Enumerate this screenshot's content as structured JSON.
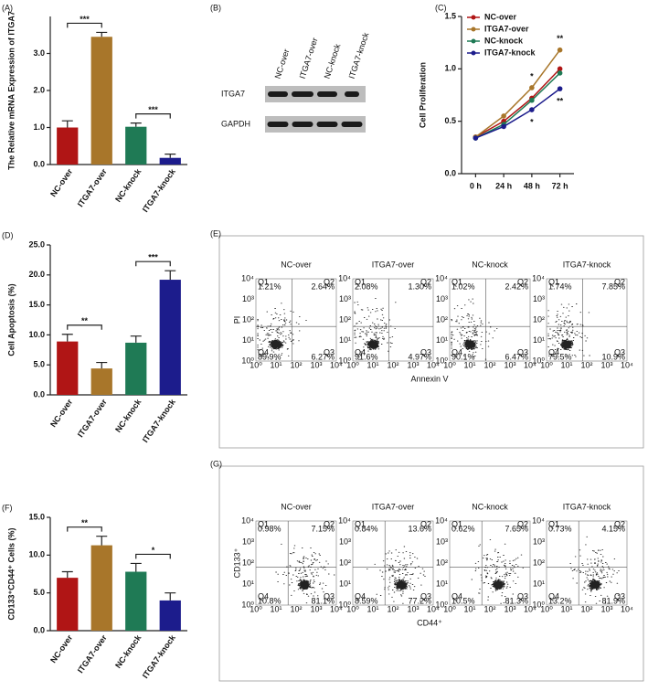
{
  "chart_data": [
    {
      "type": "bar",
      "panel": "(A)",
      "y_label": "The Relative mRNA Expression of ITGA7",
      "categories": [
        "NC-over",
        "ITGA7-over",
        "NC-knock",
        "ITGA7-knock"
      ],
      "values": [
        1.0,
        3.45,
        1.02,
        0.18
      ],
      "errors": [
        0.18,
        0.12,
        0.1,
        0.1
      ],
      "colors": [
        "#b01515",
        "#a8762a",
        "#1f7a55",
        "#1c1c8c"
      ],
      "ylim": [
        0,
        4
      ],
      "yticks": [
        {
          "value": 0,
          "label": "0.0"
        },
        {
          "value": 1,
          "label": "1.0"
        },
        {
          "value": 2,
          "label": "2.0"
        },
        {
          "value": 3,
          "label": "3.0"
        }
      ],
      "brackets": [
        {
          "pair": [
            "NC-over",
            "ITGA7-over"
          ],
          "label": "***"
        },
        {
          "pair": [
            "NC-knock",
            "ITGA7-knock"
          ],
          "label": "***"
        }
      ]
    },
    {
      "type": "line",
      "panel": "(C)",
      "y_label": "Cell Proliferation",
      "categories": [
        "0 h",
        "24 h",
        "48 h",
        "72 h"
      ],
      "series": [
        {
          "name": "NC-over",
          "color": "#b01515",
          "values": [
            0.35,
            0.5,
            0.72,
            1.0
          ]
        },
        {
          "name": "ITGA7-over",
          "color": "#a8762a",
          "values": [
            0.35,
            0.55,
            0.82,
            1.18
          ]
        },
        {
          "name": "NC-knock",
          "color": "#1f7a55",
          "values": [
            0.34,
            0.47,
            0.7,
            0.96
          ]
        },
        {
          "name": "ITGA7-knock",
          "color": "#1c1c8c",
          "values": [
            0.34,
            0.45,
            0.61,
            0.81
          ]
        }
      ],
      "ylim": [
        0,
        1.5
      ],
      "yticks": [
        {
          "value": 0,
          "label": "0.0"
        },
        0.5,
        {
          "value": 1,
          "label": "1.0"
        },
        1.5
      ],
      "legend": "top-left",
      "annotations": [
        {
          "x": "48 h",
          "series": "ITGA7-over",
          "label": "*"
        },
        {
          "x": "48 h",
          "series": "ITGA7-knock",
          "label": "*"
        },
        {
          "x": "72 h",
          "series": "ITGA7-over",
          "label": "**"
        },
        {
          "x": "72 h",
          "series": "ITGA7-knock",
          "label": "**"
        }
      ]
    },
    {
      "type": "bar",
      "panel": "(D)",
      "y_label": "Cell Apoptosis (%)",
      "categories": [
        "NC-over",
        "ITGA7-over",
        "NC-knock",
        "ITGA7-knock"
      ],
      "values": [
        8.9,
        4.4,
        8.7,
        19.2
      ],
      "errors": [
        1.2,
        1.0,
        1.1,
        1.5
      ],
      "colors": [
        "#b01515",
        "#a8762a",
        "#1f7a55",
        "#1c1c8c"
      ],
      "ylim": [
        0,
        25
      ],
      "yticks": [
        {
          "value": 0,
          "label": "0.0"
        },
        {
          "value": 5,
          "label": "5.0"
        },
        {
          "value": 10,
          "label": "10.0"
        },
        {
          "value": 15,
          "label": "15.0"
        },
        {
          "value": 20,
          "label": "20.0"
        },
        {
          "value": 25,
          "label": "25.0"
        }
      ],
      "brackets": [
        {
          "pair": [
            "NC-over",
            "ITGA7-over"
          ],
          "label": "**"
        },
        {
          "pair": [
            "NC-knock",
            "ITGA7-knock"
          ],
          "label": "***"
        }
      ]
    },
    {
      "type": "bar",
      "panel": "(F)",
      "y_label": "CD133⁺CD44⁺ Cells (%)",
      "categories": [
        "NC-over",
        "ITGA7-over",
        "NC-knock",
        "ITGA7-knock"
      ],
      "values": [
        7.0,
        11.3,
        7.8,
        4.0
      ],
      "errors": [
        0.8,
        1.2,
        1.1,
        1.0
      ],
      "colors": [
        "#b01515",
        "#a8762a",
        "#1f7a55",
        "#1c1c8c"
      ],
      "ylim": [
        0,
        15
      ],
      "yticks": [
        {
          "value": 0,
          "label": "0.0"
        },
        {
          "value": 5,
          "label": "5.0"
        },
        {
          "value": 10,
          "label": "10.0"
        },
        {
          "value": 15,
          "label": "15.0"
        }
      ],
      "brackets": [
        {
          "pair": [
            "NC-over",
            "ITGA7-over"
          ],
          "label": "**"
        },
        {
          "pair": [
            "NC-knock",
            "ITGA7-knock"
          ],
          "label": "*"
        }
      ]
    }
  ],
  "blot": {
    "panel": "(B)",
    "lanes": [
      "NC-over",
      "ITGA7-over",
      "NC-knock",
      "ITGA7-knock"
    ],
    "rows": [
      "ITGA7",
      "GAPDH"
    ]
  },
  "flow_ticks": [
    "10⁰",
    "10¹",
    "10²",
    "10³",
    "10⁴"
  ],
  "flow": [
    {
      "panel": "(E)",
      "y_label": "PI",
      "x_label": "Annexin V",
      "plots": [
        {
          "title": "NC-over",
          "quadrants": [
            {
              "name": "Q1",
              "value": "1.21%"
            },
            {
              "name": "Q2",
              "value": "2.64%"
            },
            {
              "name": "Q4",
              "value": "89.9%"
            },
            {
              "name": "Q3",
              "value": "6.27%"
            }
          ]
        },
        {
          "title": "ITGA7-over",
          "quadrants": [
            {
              "name": "Q1",
              "value": "2.08%"
            },
            {
              "name": "Q2",
              "value": "1.30%"
            },
            {
              "name": "Q4",
              "value": "91.6%"
            },
            {
              "name": "Q3",
              "value": "4.97%"
            }
          ]
        },
        {
          "title": "NC-knock",
          "quadrants": [
            {
              "name": "Q1",
              "value": "1.02%"
            },
            {
              "name": "Q2",
              "value": "2.42%"
            },
            {
              "name": "Q4",
              "value": "90.1%"
            },
            {
              "name": "Q3",
              "value": "6.47%"
            }
          ]
        },
        {
          "title": "ITGA7-knock",
          "quadrants": [
            {
              "name": "Q1",
              "value": "1.74%"
            },
            {
              "name": "Q2",
              "value": "7.85%"
            },
            {
              "name": "Q4",
              "value": "79.5%"
            },
            {
              "name": "Q3",
              "value": "10.9%"
            }
          ]
        }
      ]
    },
    {
      "panel": "(G)",
      "y_label": "CD133⁺",
      "x_label": "CD44⁺",
      "plots": [
        {
          "title": "NC-over",
          "quadrants": [
            {
              "name": "Q1",
              "value": "0.98%"
            },
            {
              "name": "Q2",
              "value": "7.15%"
            },
            {
              "name": "Q4",
              "value": "10.8%"
            },
            {
              "name": "Q3",
              "value": "81.1%"
            }
          ]
        },
        {
          "title": "ITGA7-over",
          "quadrants": [
            {
              "name": "Q1",
              "value": "0.84%"
            },
            {
              "name": "Q2",
              "value": "13.6%"
            },
            {
              "name": "Q4",
              "value": "8.59%"
            },
            {
              "name": "Q3",
              "value": "77.2%"
            }
          ]
        },
        {
          "title": "NC-knock",
          "quadrants": [
            {
              "name": "Q1",
              "value": "0.62%"
            },
            {
              "name": "Q2",
              "value": "7.65%"
            },
            {
              "name": "Q4",
              "value": "10.5%"
            },
            {
              "name": "Q3",
              "value": "81.3%"
            }
          ]
        },
        {
          "title": "ITGA7-knock",
          "quadrants": [
            {
              "name": "Q1",
              "value": "0.73%"
            },
            {
              "name": "Q2",
              "value": "4.15%"
            },
            {
              "name": "Q4",
              "value": "13.2%"
            },
            {
              "name": "Q3",
              "value": "81.9%"
            }
          ]
        }
      ]
    }
  ]
}
